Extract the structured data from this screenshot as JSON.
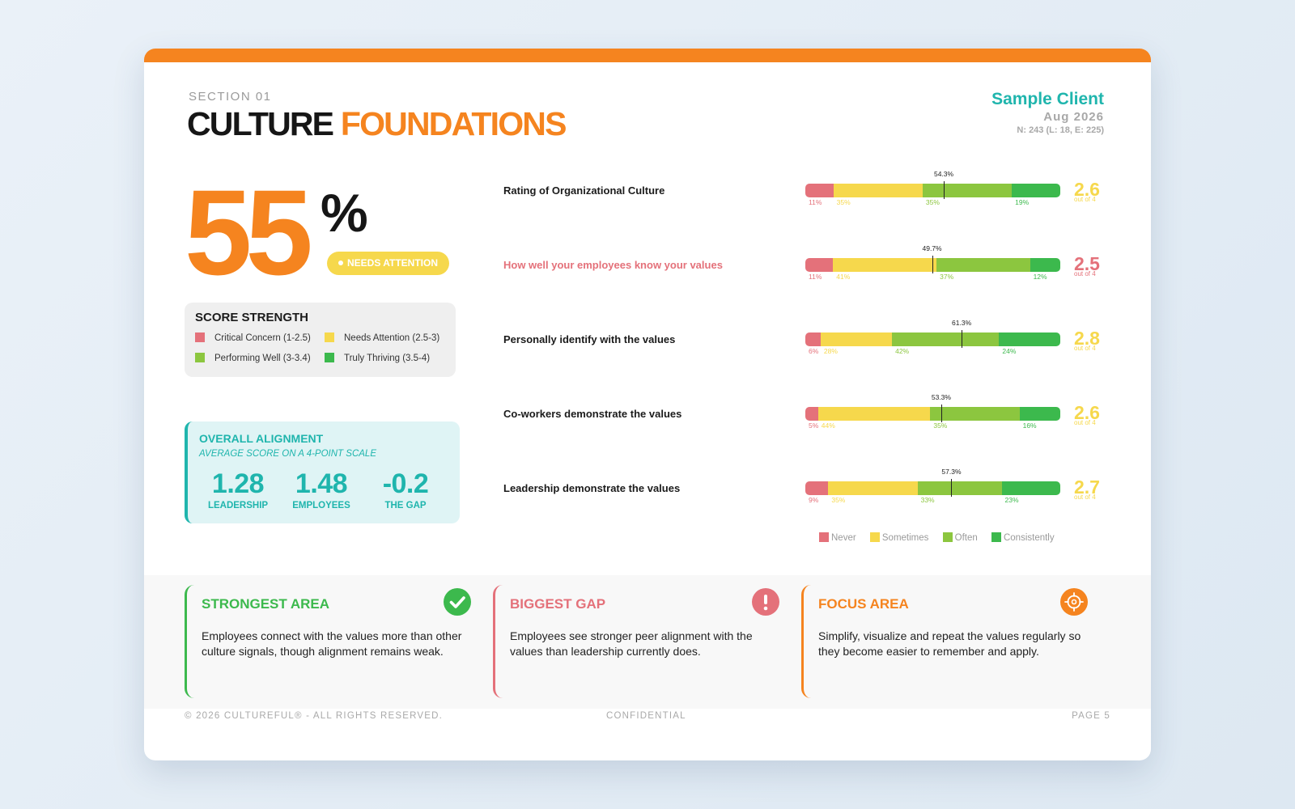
{
  "header": {
    "section": "SECTION 01",
    "title_part1": "CULTURE",
    "title_part2": "FOUNDATIONS",
    "client": "Sample Client",
    "date": "Aug 2026",
    "sample": "N: 243 (L: 18, E: 225)"
  },
  "score": {
    "value": "55",
    "suffix": "%",
    "badge": "NEEDS ATTENTION"
  },
  "score_strength": {
    "title": "SCORE STRENGTH",
    "items": [
      {
        "label": "Critical Concern (1-2.5)",
        "color": "#e4717a"
      },
      {
        "label": "Needs Attention (2.5-3)",
        "color": "#f6d84c"
      },
      {
        "label": "Performing Well (3-3.4)",
        "color": "#8cc63f"
      },
      {
        "label": "Truly Thriving (3.5-4)",
        "color": "#3cb94d"
      }
    ]
  },
  "alignment": {
    "title": "OVERALL ALIGNMENT",
    "subtitle": "AVERAGE SCORE ON A 4-POINT SCALE",
    "stats": [
      {
        "value": "1.28",
        "label": "LEADERSHIP"
      },
      {
        "value": "1.48",
        "label": "EMPLOYEES"
      },
      {
        "value": "-0.2",
        "label": "THE GAP"
      }
    ]
  },
  "chart_data": {
    "type": "bar",
    "stacked": true,
    "orientation": "horizontal",
    "series_names": [
      "Never",
      "Sometimes",
      "Often",
      "Consistently"
    ],
    "series_colors": [
      "#e4717a",
      "#f6d84c",
      "#8cc63f",
      "#3cb94d"
    ],
    "rows": [
      {
        "label": "Rating of Organizational Culture",
        "values": [
          11,
          35,
          35,
          19
        ],
        "marker": 54.3,
        "marker_label": "54.3%",
        "score": "2.6",
        "score_sub": "out of 4",
        "score_color": "#f6d84c",
        "highlight": false
      },
      {
        "label": "How well your employees know your values",
        "values": [
          11,
          41,
          37,
          12
        ],
        "marker": 49.7,
        "marker_label": "49.7%",
        "score": "2.5",
        "score_sub": "out of 4",
        "score_color": "#e4717a",
        "highlight": true
      },
      {
        "label": "Personally identify with the values",
        "values": [
          6,
          28,
          42,
          24
        ],
        "marker": 61.3,
        "marker_label": "61.3%",
        "score": "2.8",
        "score_sub": "out of 4",
        "score_color": "#f6d84c",
        "highlight": false
      },
      {
        "label": "Co-workers demonstrate the values",
        "values": [
          5,
          44,
          35,
          16
        ],
        "marker": 53.3,
        "marker_label": "53.3%",
        "score": "2.6",
        "score_sub": "out of 4",
        "score_color": "#f6d84c",
        "highlight": false
      },
      {
        "label": "Leadership demonstrate the values",
        "values": [
          9,
          35,
          33,
          23
        ],
        "marker": 57.3,
        "marker_label": "57.3%",
        "score": "2.7",
        "score_sub": "out of 4",
        "score_color": "#f6d84c",
        "highlight": false
      }
    ]
  },
  "panels": [
    {
      "title": "STRONGEST AREA",
      "text": "Employees connect with the values more than other culture signals, though alignment remains weak.",
      "color": "#3cb94d",
      "icon": "check-circle-icon"
    },
    {
      "title": "BIGGEST GAP",
      "text": "Employees see stronger peer alignment with the values than leadership currently does.",
      "color": "#e4717a",
      "icon": "alert-circle-icon"
    },
    {
      "title": "FOCUS AREA",
      "text": "Simplify, visualize and repeat the values regularly so they become easier to remember and apply.",
      "color": "#f5841f",
      "icon": "target-icon"
    }
  ],
  "footer": {
    "copyright": "© 2026 CULTUREFUL® - ALL RIGHTS RESERVED.",
    "confidential": "CONFIDENTIAL",
    "page": "PAGE 5"
  }
}
